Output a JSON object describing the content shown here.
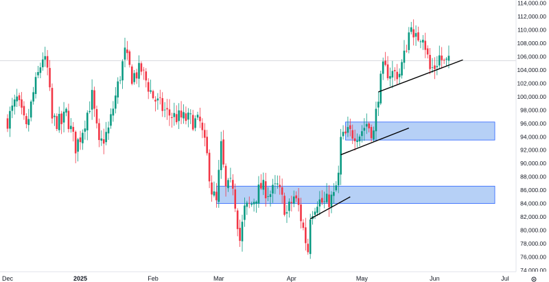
{
  "chart_data": {
    "type": "candlestick",
    "instrument_note": "",
    "x_ticks": [
      "Dec",
      "2025",
      "Feb",
      "Mar",
      "Apr",
      "May",
      "Jun",
      "Jul"
    ],
    "y_ticks": [
      "74,000.00",
      "76,000.00",
      "78,000.00",
      "80,000.00",
      "82,000.00",
      "84,000.00",
      "86,000.00",
      "88,000.00",
      "90,000.00",
      "92,000.00",
      "94,000.00",
      "96,000.00",
      "98,000.00",
      "100,000.00",
      "102,000.00",
      "104,000.00",
      "106,000.00",
      "108,000.00",
      "110,000.00",
      "112,000.00",
      "114,000.00"
    ],
    "ylim": [
      73200,
      115200
    ],
    "current_price_line": 105400,
    "colors": {
      "up": "#089981",
      "down": "#f23645",
      "zone_fill": "#a9c8f5",
      "zone_border": "#2962ff",
      "trendline": "#000000"
    },
    "series_start_date": "2024-12-01",
    "series_end_date": "2025-06-07",
    "anchors": [
      [
        "2024-12-01",
        96500
      ],
      [
        "2024-12-05",
        99500
      ],
      [
        "2024-12-09",
        95000
      ],
      [
        "2024-12-12",
        100500
      ],
      [
        "2024-12-16",
        106000
      ],
      [
        "2024-12-18",
        104000
      ],
      [
        "2024-12-20",
        96500
      ],
      [
        "2024-12-24",
        96000
      ],
      [
        "2024-12-26",
        97500
      ],
      [
        "2024-12-30",
        92500
      ],
      [
        "2025-01-01",
        94000
      ],
      [
        "2025-01-06",
        100000
      ],
      [
        "2025-01-09",
        92500
      ],
      [
        "2025-01-13",
        95000
      ],
      [
        "2025-01-16",
        100000
      ],
      [
        "2025-01-20",
        106500
      ],
      [
        "2025-01-23",
        103000
      ],
      [
        "2025-01-27",
        104000
      ],
      [
        "2025-02-01",
        100000
      ],
      [
        "2025-02-03",
        99000
      ],
      [
        "2025-02-07",
        97500
      ],
      [
        "2025-02-10",
        97000
      ],
      [
        "2025-02-17",
        96500
      ],
      [
        "2025-02-21",
        96000
      ],
      [
        "2025-02-24",
        91000
      ],
      [
        "2025-02-26",
        86000
      ],
      [
        "2025-02-28",
        84000
      ],
      [
        "2025-03-02",
        92500
      ],
      [
        "2025-03-04",
        86000
      ],
      [
        "2025-03-07",
        87000
      ],
      [
        "2025-03-10",
        78500
      ],
      [
        "2025-03-12",
        83000
      ],
      [
        "2025-03-15",
        84000
      ],
      [
        "2025-03-19",
        86500
      ],
      [
        "2025-03-23",
        85500
      ],
      [
        "2025-03-26",
        86500
      ],
      [
        "2025-03-30",
        82500
      ],
      [
        "2025-04-02",
        85000
      ],
      [
        "2025-04-04",
        83500
      ],
      [
        "2025-04-07",
        78500
      ],
      [
        "2025-04-08",
        77000
      ],
      [
        "2025-04-09",
        82500
      ],
      [
        "2025-04-12",
        84500
      ],
      [
        "2025-04-15",
        84000
      ],
      [
        "2025-04-19",
        85000
      ],
      [
        "2025-04-21",
        88000
      ],
      [
        "2025-04-22",
        93500
      ],
      [
        "2025-04-25",
        94500
      ],
      [
        "2025-04-30",
        94500
      ],
      [
        "2025-05-03",
        96000
      ],
      [
        "2025-05-06",
        94500
      ],
      [
        "2025-05-08",
        100500
      ],
      [
        "2025-05-10",
        104000
      ],
      [
        "2025-05-14",
        103500
      ],
      [
        "2025-05-17",
        103500
      ],
      [
        "2025-05-19",
        106000
      ],
      [
        "2025-05-21",
        109500
      ],
      [
        "2025-05-22",
        111500
      ],
      [
        "2025-05-23",
        108000
      ],
      [
        "2025-05-25",
        109000
      ],
      [
        "2025-05-27",
        109500
      ],
      [
        "2025-05-30",
        104000
      ],
      [
        "2025-06-01",
        104500
      ],
      [
        "2025-06-03",
        106000
      ],
      [
        "2025-06-05",
        105000
      ]
    ],
    "highlights": [
      {
        "low": 84000,
        "high": 86600,
        "from": "2025-02-28",
        "to": "2025-07-01"
      },
      {
        "low": 93500,
        "high": 96200,
        "from": "2025-04-24",
        "to": "2025-07-01"
      }
    ],
    "trendlines": [
      {
        "x1": "2025-04-09",
        "y1": 81700,
        "x2": "2025-04-26",
        "y2": 85000
      },
      {
        "x1": "2025-04-22",
        "y1": 91300,
        "x2": "2025-05-21",
        "y2": 95300
      },
      {
        "x1": "2025-05-08",
        "y1": 100700,
        "x2": "2025-06-13",
        "y2": 105500
      }
    ]
  }
}
